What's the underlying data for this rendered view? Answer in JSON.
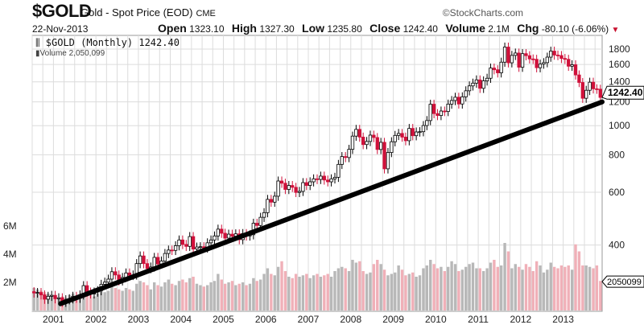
{
  "header": {
    "symbol": "$GOLD",
    "name": "Gold - Spot Price (EOD)",
    "exchange": "CME",
    "date": "22-Nov-2013",
    "brand": "©StockCharts.com",
    "open_label": "Open",
    "open": "1323.10",
    "high_label": "High",
    "high": "1327.30",
    "low_label": "Low",
    "low": "1235.80",
    "close_label": "Close",
    "close": "1242.40",
    "volume_label": "Volume",
    "volume": "2.1M",
    "chg_label": "Chg",
    "chg": "-80.10 (-6.06%)"
  },
  "legend": {
    "price": "$GOLD (Monthly) 1242.40",
    "volume": "Volume 2,050,099"
  },
  "colors": {
    "up": "#000000",
    "down": "#d0103a",
    "vol_up": "#b8b8b8",
    "vol_down": "#f0b0b8",
    "grid": "#dcdcdc",
    "trend": "#000000"
  },
  "chart_data": {
    "type": "candlestick",
    "title": "$GOLD (Monthly)",
    "start": "2000-07",
    "frequency": "monthly",
    "price_scale": "log",
    "ylim": [
      240,
      1950
    ],
    "price_ticks": [
      "400",
      "600",
      "800",
      "1000",
      "1200",
      "1400",
      "1600",
      "1800"
    ],
    "volume_ticks": [
      "2M",
      "4M",
      "6M"
    ],
    "volume_tick_values": [
      2,
      4,
      6
    ],
    "x_tick_labels": [
      "2001",
      "2002",
      "2003",
      "2004",
      "2005",
      "2006",
      "2007",
      "2008",
      "2009",
      "2010",
      "2011",
      "2012",
      "2013"
    ],
    "last_price_label": "1242.40",
    "last_volume_label": "2050099",
    "close": [
      277,
      278,
      273,
      264,
      270,
      272,
      265,
      267,
      258,
      263,
      265,
      270,
      266,
      273,
      293,
      279,
      275,
      279,
      282,
      296,
      301,
      308,
      326,
      318,
      304,
      312,
      323,
      317,
      318,
      347,
      368,
      347,
      334,
      338,
      364,
      346,
      354,
      375,
      385,
      384,
      398,
      416,
      402,
      396,
      427,
      388,
      394,
      395,
      391,
      407,
      416,
      429,
      452,
      438,
      422,
      435,
      428,
      436,
      417,
      437,
      429,
      433,
      473,
      465,
      495,
      513,
      568,
      556,
      582,
      654,
      643,
      613,
      632,
      623,
      599,
      604,
      646,
      632,
      650,
      665,
      662,
      679,
      659,
      650,
      665,
      673,
      743,
      789,
      783,
      834,
      923,
      972,
      916,
      865,
      886,
      930,
      913,
      833,
      880,
      718,
      814,
      884,
      928,
      942,
      916,
      891,
      979,
      926,
      953,
      955,
      1001,
      1040,
      1179,
      1097,
      1081,
      1119,
      1115,
      1180,
      1213,
      1244,
      1181,
      1248,
      1307,
      1357,
      1386,
      1421,
      1332,
      1410,
      1439,
      1556,
      1536,
      1500,
      1628,
      1828,
      1620,
      1715,
      1746,
      1566,
      1738,
      1711,
      1669,
      1664,
      1560,
      1604,
      1622,
      1692,
      1772,
      1719,
      1713,
      1675,
      1664,
      1578,
      1596,
      1476,
      1393,
      1234,
      1312,
      1396,
      1327,
      1323,
      1242
    ],
    "volume_millions": [
      1.6,
      1.5,
      1.4,
      1.3,
      1.2,
      1.1,
      1.0,
      0.9,
      1.0,
      0.9,
      1.1,
      1.2,
      1.0,
      1.0,
      1.5,
      1.2,
      1.1,
      1.0,
      1.2,
      1.5,
      1.3,
      1.4,
      1.8,
      1.6,
      1.5,
      1.4,
      1.6,
      1.5,
      1.4,
      1.9,
      2.1,
      2.0,
      1.8,
      1.5,
      2.0,
      1.8,
      1.7,
      2.0,
      2.2,
      1.9,
      1.8,
      2.1,
      2.2,
      2.0,
      2.3,
      2.4,
      1.9,
      1.8,
      1.7,
      1.8,
      2.0,
      2.1,
      2.6,
      2.2,
      1.9,
      2.0,
      2.1,
      1.8,
      1.9,
      2.0,
      1.8,
      1.9,
      2.3,
      2.1,
      2.2,
      2.6,
      3.0,
      2.6,
      2.5,
      3.1,
      3.5,
      2.8,
      2.4,
      2.3,
      2.6,
      2.4,
      2.5,
      2.6,
      2.3,
      2.5,
      2.6,
      2.4,
      2.5,
      2.6,
      2.4,
      2.8,
      3.0,
      3.1,
      3.0,
      2.8,
      3.6,
      3.4,
      3.5,
      2.8,
      2.6,
      2.7,
      3.3,
      3.6,
      3.3,
      2.9,
      2.5,
      2.6,
      2.7,
      3.2,
      2.9,
      2.5,
      2.6,
      2.7,
      2.4,
      2.5,
      3.0,
      3.2,
      3.6,
      3.3,
      3.0,
      3.1,
      2.8,
      3.1,
      3.5,
      3.3,
      2.8,
      2.9,
      3.1,
      3.3,
      3.4,
      3.0,
      3.0,
      2.8,
      3.0,
      3.4,
      3.6,
      3.1,
      3.2,
      4.8,
      4.2,
      3.0,
      3.3,
      3.1,
      2.9,
      3.3,
      3.1,
      2.8,
      3.5,
      3.2,
      2.7,
      2.9,
      3.4,
      3.1,
      3.0,
      3.2,
      3.1,
      3.2,
      2.9,
      4.7,
      4.2,
      3.2,
      3.2,
      3.1,
      3.0,
      3.2,
      2.1
    ],
    "trendline": {
      "from": {
        "month_index": 8,
        "price": 255
      },
      "to": {
        "month_index": 161,
        "price": 1200
      }
    }
  }
}
